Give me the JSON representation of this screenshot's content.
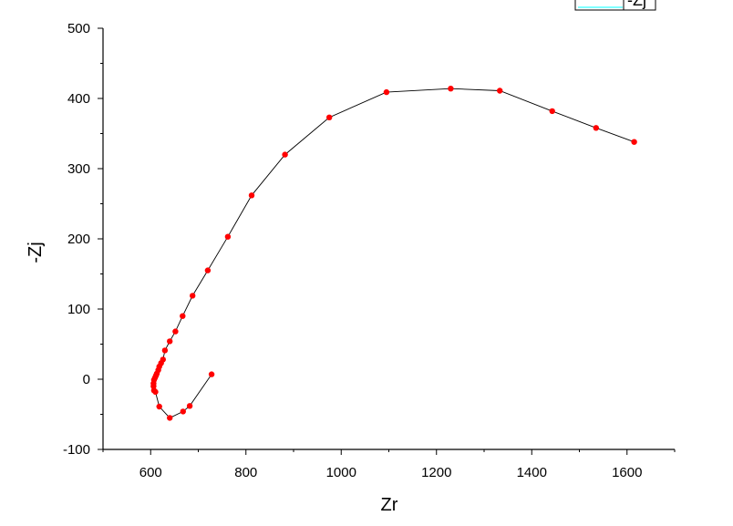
{
  "chart_data": {
    "type": "scatter",
    "xlabel": "Zr",
    "ylabel": "-Zj",
    "xlim": [
      500,
      1700
    ],
    "ylim": [
      -100,
      500
    ],
    "x_ticks": [
      600,
      800,
      1000,
      1200,
      1400,
      1600
    ],
    "y_ticks": [
      -100,
      0,
      100,
      200,
      300,
      400,
      500
    ],
    "grid": false,
    "legend_position": "top-right",
    "series": [
      {
        "name": "-Zj",
        "color": "#ff0000",
        "line_color": "#000000",
        "points": [
          [
            1615,
            338
          ],
          [
            1535,
            358
          ],
          [
            1443,
            382
          ],
          [
            1333,
            411
          ],
          [
            1230,
            414
          ],
          [
            1095,
            409
          ],
          [
            975,
            373
          ],
          [
            882,
            320
          ],
          [
            812,
            262
          ],
          [
            762,
            203
          ],
          [
            720,
            155
          ],
          [
            688,
            119
          ],
          [
            667,
            90
          ],
          [
            652,
            68
          ],
          [
            640,
            54
          ],
          [
            630,
            41
          ],
          [
            626,
            28
          ],
          [
            622,
            23
          ],
          [
            618,
            18
          ],
          [
            616,
            13
          ],
          [
            613,
            8
          ],
          [
            611,
            5
          ],
          [
            609,
            2
          ],
          [
            607,
            -1
          ],
          [
            606,
            -6
          ],
          [
            606,
            -10
          ],
          [
            607,
            -16
          ],
          [
            610,
            -18
          ],
          [
            618,
            -39
          ],
          [
            640,
            -55
          ],
          [
            668,
            -46
          ],
          [
            682,
            -38
          ],
          [
            728,
            7
          ]
        ]
      }
    ]
  }
}
